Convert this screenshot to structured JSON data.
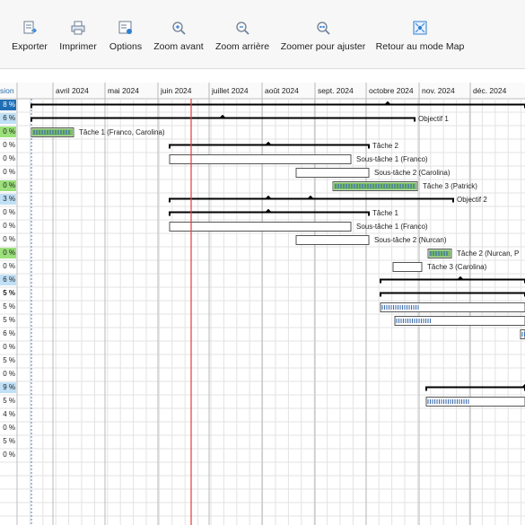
{
  "toolbar": {
    "buttons": [
      {
        "label": "Exporter",
        "icon": "export-icon"
      },
      {
        "label": "Imprimer",
        "icon": "print-icon"
      },
      {
        "label": "Options",
        "icon": "options-icon"
      },
      {
        "label": "Zoom avant",
        "icon": "zoom-in-icon"
      },
      {
        "label": "Zoom arrière",
        "icon": "zoom-out-icon"
      },
      {
        "label": "Zoomer pour ajuster",
        "icon": "zoom-fit-icon"
      },
      {
        "label": "Retour au mode Map",
        "icon": "map-mode-icon"
      }
    ]
  },
  "column_header": "sion",
  "months": [
    "avril 2024",
    "mai 2024",
    "juin 2024",
    "juillet 2024",
    "août 2024",
    "sept. 2024",
    "octobre 2024",
    "nov. 2024",
    "déc. 2024"
  ],
  "rows": [
    {
      "pct": "8 %",
      "style": "blue-dark",
      "kind": "summary",
      "label": ""
    },
    {
      "pct": "6 %",
      "style": "blue",
      "kind": "summary",
      "label": "Objectif 1"
    },
    {
      "pct": "0 %",
      "style": "green",
      "kind": "bar-done",
      "label": "Tâche 1 (Franco, Carolina)"
    },
    {
      "pct": "0 %",
      "style": "plain",
      "kind": "summary",
      "label": "Tâche 2"
    },
    {
      "pct": "0 %",
      "style": "plain",
      "kind": "bar",
      "label": "Sous-tâche 1 (Franco)"
    },
    {
      "pct": "0 %",
      "style": "plain",
      "kind": "bar",
      "label": "Sous-tâche 2 (Carolina)"
    },
    {
      "pct": "0 %",
      "style": "green",
      "kind": "bar-done",
      "label": "Tâche 3 (Patrick)"
    },
    {
      "pct": "3 %",
      "style": "blue",
      "kind": "summary",
      "label": "Objectif 2"
    },
    {
      "pct": "0 %",
      "style": "plain",
      "kind": "summary",
      "label": "Tâche 1"
    },
    {
      "pct": "0 %",
      "style": "plain",
      "kind": "bar",
      "label": "Sous-tâche 1 (Franco)"
    },
    {
      "pct": "0 %",
      "style": "plain",
      "kind": "bar",
      "label": "Sous-tâche 2 (Nurcan)"
    },
    {
      "pct": "0 %",
      "style": "green",
      "kind": "bar-done",
      "label": "Tâche 2 (Nurcan, P"
    },
    {
      "pct": "0 %",
      "style": "plain",
      "kind": "bar",
      "label": "Tâche 3 (Carolina)"
    },
    {
      "pct": "6 %",
      "style": "blue",
      "kind": "summary",
      "label": ""
    },
    {
      "pct": "5 %",
      "style": "bold",
      "kind": "summary",
      "label": ""
    },
    {
      "pct": "5 %",
      "style": "plain",
      "kind": "bar-partial",
      "label": ""
    },
    {
      "pct": "5 %",
      "style": "plain",
      "kind": "bar-partial",
      "label": ""
    },
    {
      "pct": "6 %",
      "style": "plain",
      "kind": "bar-partial",
      "label": ""
    },
    {
      "pct": "0 %",
      "style": "plain",
      "kind": "none",
      "label": ""
    },
    {
      "pct": "5 %",
      "style": "plain",
      "kind": "none",
      "label": ""
    },
    {
      "pct": "0 %",
      "style": "plain",
      "kind": "none",
      "label": ""
    },
    {
      "pct": "9 %",
      "style": "blue",
      "kind": "summary",
      "label": ""
    },
    {
      "pct": "5 %",
      "style": "plain",
      "kind": "bar-partial",
      "label": ""
    },
    {
      "pct": "4 %",
      "style": "plain",
      "kind": "none",
      "label": ""
    },
    {
      "pct": "0 %",
      "style": "plain",
      "kind": "none",
      "label": ""
    },
    {
      "pct": "5 %",
      "style": "plain",
      "kind": "none",
      "label": ""
    },
    {
      "pct": "0 %",
      "style": "plain",
      "kind": "none",
      "label": ""
    }
  ],
  "colors": {
    "today_line": "#e53935",
    "blue_dark_cell": "#1e6fb5",
    "blue_cell": "#bfe0f6",
    "green_cell": "#9be07a",
    "bar_fill_done": "#7cc062",
    "bar_progress": "#3f6fb0",
    "grid": "#e3e3e3",
    "month_line": "#b9b9b9"
  }
}
